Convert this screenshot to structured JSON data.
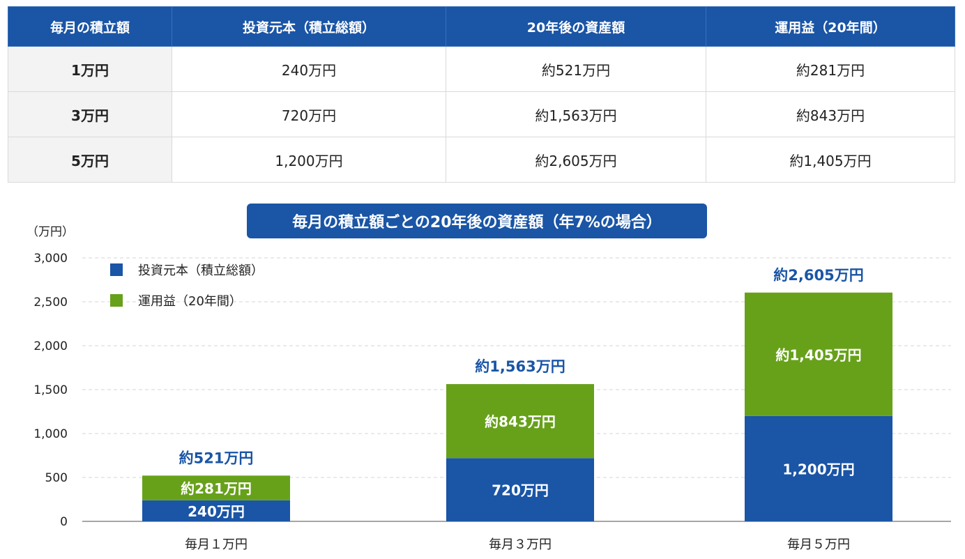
{
  "table": {
    "headers": [
      "毎月の積立額",
      "投資元本（積立総額）",
      "20年後の資産額",
      "運用益（20年間）"
    ],
    "rows": [
      [
        "1万円",
        "240万円",
        "約521万円",
        "約281万円"
      ],
      [
        "3万円",
        "720万円",
        "約1,563万円",
        "約843万円"
      ],
      [
        "5万円",
        "1,200万円",
        "約2,605万円",
        "約1,405万円"
      ]
    ]
  },
  "colors": {
    "principal": "#1a55a6",
    "gain": "#67a11a",
    "total_label": "#1a55a6"
  },
  "chart_data": {
    "type": "bar",
    "stacked": true,
    "title": "毎月の積立額ごとの20年後の資産額（年7%の場合）",
    "ylabel": "（万円）",
    "xlabel": "",
    "categories": [
      "毎月１万円",
      "毎月３万円",
      "毎月５万円"
    ],
    "series": [
      {
        "name": "投資元本（積立総額）",
        "values": [
          240,
          720,
          1200
        ],
        "labels": [
          "240万円",
          "720万円",
          "1,200万円"
        ]
      },
      {
        "name": "運用益（20年間）",
        "values": [
          281,
          843,
          1405
        ],
        "labels": [
          "約281万円",
          "約843万円",
          "約1,405万円"
        ]
      }
    ],
    "totals": [
      521,
      1563,
      2605
    ],
    "total_labels": [
      "約521万円",
      "約1,563万円",
      "約2,605万円"
    ],
    "ylim": [
      0,
      3000
    ],
    "yticks": [
      0,
      500,
      1000,
      1500,
      2000,
      2500,
      3000
    ],
    "ytick_labels": [
      "0",
      "500",
      "1,000",
      "1,500",
      "2,000",
      "2,500",
      "3,000"
    ],
    "grid": true,
    "legend_position": "top-left"
  }
}
